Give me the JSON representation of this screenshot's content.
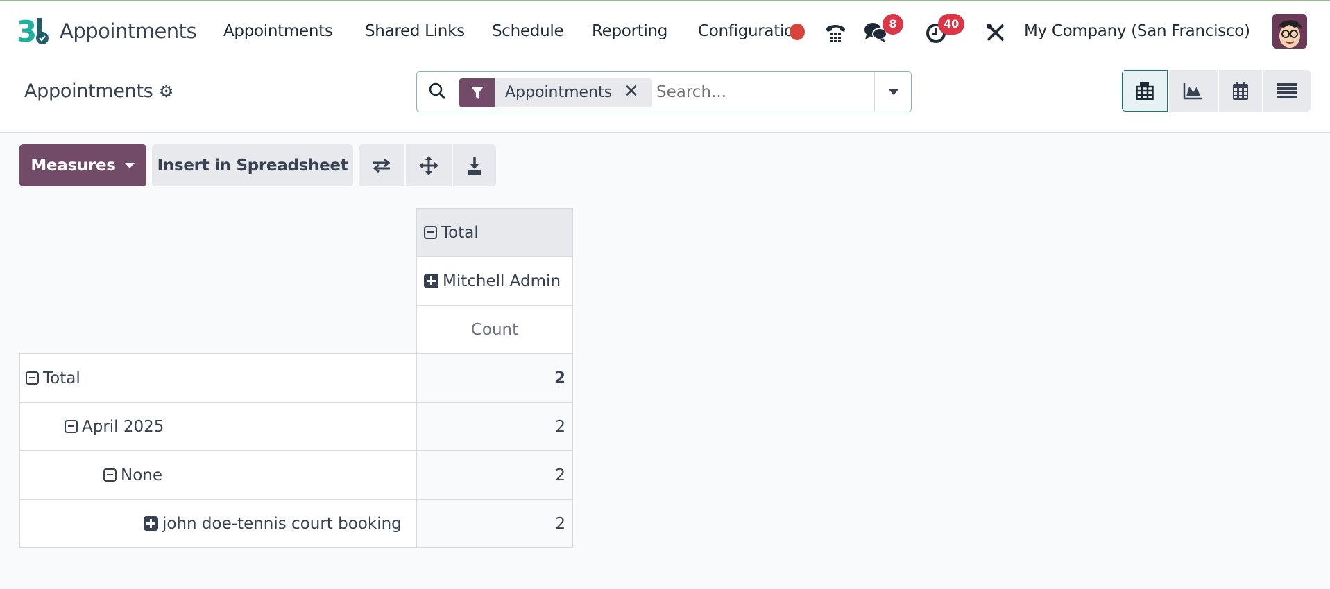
{
  "navbar": {
    "app_name": "Appointments",
    "menu": [
      "Appointments",
      "Shared Links",
      "Schedule",
      "Reporting",
      "Configuration"
    ],
    "chat_badge": "8",
    "activity_badge": "40",
    "company": "My Company (San Francisco)",
    "icons": [
      "appointment-logo",
      "phone-icon",
      "chat-icon",
      "clock-icon",
      "tools-icon",
      "avatar"
    ]
  },
  "control_panel": {
    "title": "Appointments",
    "search": {
      "facet": "Appointments",
      "placeholder": "Search..."
    },
    "views": [
      "pivot",
      "graph",
      "calendar",
      "list"
    ],
    "active_view": "pivot"
  },
  "toolbar": {
    "measures": "Measures",
    "insert": "Insert in Spreadsheet"
  },
  "pivot": {
    "col_total": "Total",
    "col_group": "Mitchell Admin",
    "measure": "Count",
    "rows": [
      {
        "label": "Total",
        "value": "2"
      },
      {
        "label": "April 2025",
        "value": "2"
      },
      {
        "label": "None",
        "value": "2"
      },
      {
        "label": "john doe-tennis court booking",
        "value": "2"
      }
    ]
  },
  "colors": {
    "brand": "#714b67",
    "accent": "#017e84",
    "badge": "#dc3545"
  }
}
